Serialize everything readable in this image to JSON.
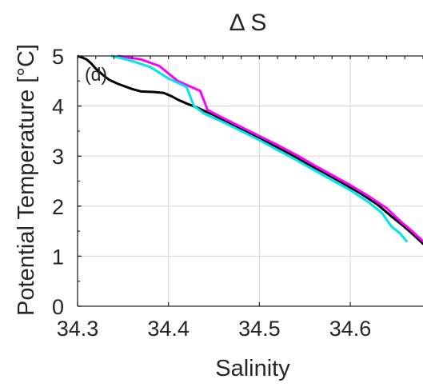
{
  "chart_data": {
    "type": "line",
    "title": "Δ S",
    "xlabel": "Salinity",
    "ylabel": "Potential Temperature [°C]",
    "panel_label": "(d)",
    "xlim": [
      34.3,
      34.68
    ],
    "ylim": [
      0,
      5
    ],
    "xticks": [
      34.3,
      34.4,
      34.5,
      34.6
    ],
    "xtick_labels": [
      "34.3",
      "34.4",
      "34.5",
      "34.6"
    ],
    "yticks": [
      0,
      1,
      2,
      3,
      4,
      5
    ],
    "ytick_labels": [
      "0",
      "1",
      "2",
      "3",
      "4",
      "5"
    ],
    "grid": true,
    "series": [
      {
        "color": "#000000",
        "points": [
          [
            34.3,
            5.0
          ],
          [
            34.305,
            4.97
          ],
          [
            34.31,
            4.93
          ],
          [
            34.315,
            4.85
          ],
          [
            34.32,
            4.75
          ],
          [
            34.328,
            4.62
          ],
          [
            34.335,
            4.52
          ],
          [
            34.345,
            4.44
          ],
          [
            34.36,
            4.34
          ],
          [
            34.37,
            4.29
          ],
          [
            34.385,
            4.28
          ],
          [
            34.395,
            4.26
          ],
          [
            34.4,
            4.22
          ],
          [
            34.405,
            4.18
          ],
          [
            34.41,
            4.13
          ],
          [
            34.42,
            4.05
          ],
          [
            34.43,
            3.98
          ],
          [
            34.45,
            3.82
          ],
          [
            34.47,
            3.63
          ],
          [
            34.49,
            3.45
          ],
          [
            34.51,
            3.27
          ],
          [
            34.53,
            3.08
          ],
          [
            34.55,
            2.87
          ],
          [
            34.57,
            2.68
          ],
          [
            34.59,
            2.48
          ],
          [
            34.61,
            2.27
          ],
          [
            34.63,
            2.03
          ],
          [
            34.645,
            1.8
          ],
          [
            34.66,
            1.58
          ],
          [
            34.67,
            1.42
          ],
          [
            34.68,
            1.25
          ]
        ]
      },
      {
        "color": "#ff00ff",
        "points": [
          [
            34.345,
            5.0
          ],
          [
            34.37,
            4.93
          ],
          [
            34.39,
            4.8
          ],
          [
            34.41,
            4.5
          ],
          [
            34.435,
            4.3
          ],
          [
            34.443,
            3.92
          ],
          [
            34.46,
            3.76
          ],
          [
            34.48,
            3.58
          ],
          [
            34.5,
            3.4
          ],
          [
            34.52,
            3.22
          ],
          [
            34.54,
            3.03
          ],
          [
            34.56,
            2.82
          ],
          [
            34.58,
            2.62
          ],
          [
            34.6,
            2.42
          ],
          [
            34.62,
            2.2
          ],
          [
            34.64,
            1.96
          ],
          [
            34.655,
            1.7
          ],
          [
            34.668,
            1.5
          ],
          [
            34.68,
            1.3
          ]
        ]
      },
      {
        "color": "#00e5e5",
        "points": [
          [
            34.338,
            5.0
          ],
          [
            34.36,
            4.9
          ],
          [
            34.38,
            4.78
          ],
          [
            34.4,
            4.55
          ],
          [
            34.42,
            4.38
          ],
          [
            34.428,
            4.0
          ],
          [
            34.44,
            3.84
          ],
          [
            34.46,
            3.68
          ],
          [
            34.48,
            3.5
          ],
          [
            34.5,
            3.32
          ],
          [
            34.52,
            3.12
          ],
          [
            34.54,
            2.93
          ],
          [
            34.56,
            2.72
          ],
          [
            34.58,
            2.52
          ],
          [
            34.6,
            2.32
          ],
          [
            34.62,
            2.08
          ],
          [
            34.635,
            1.86
          ],
          [
            34.645,
            1.6
          ],
          [
            34.655,
            1.45
          ],
          [
            34.662,
            1.3
          ]
        ]
      }
    ]
  }
}
